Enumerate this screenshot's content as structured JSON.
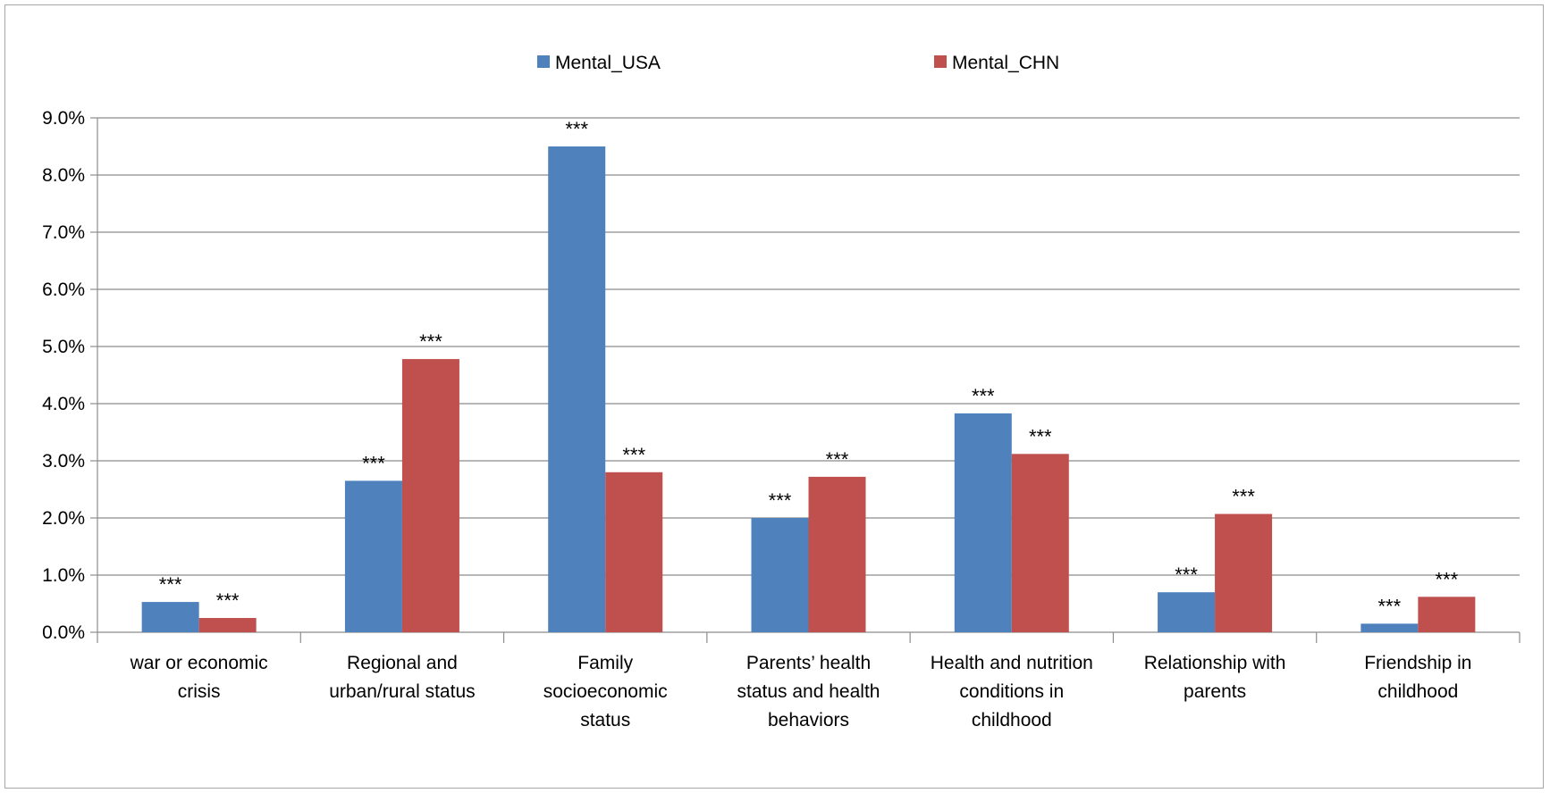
{
  "chart_data": {
    "type": "bar",
    "categories": [
      [
        "war or economic",
        "crisis"
      ],
      [
        "Regional and",
        "urban/rural status"
      ],
      [
        "Family",
        "socioeconomic",
        "status"
      ],
      [
        "Parents’ health",
        "status and health",
        "behaviors"
      ],
      [
        "Health and nutrition",
        "conditions in",
        "childhood"
      ],
      [
        "Relationship with",
        "parents"
      ],
      [
        "Friendship in",
        "childhood"
      ]
    ],
    "series": [
      {
        "name": "Mental_USA",
        "color": "#4f81bd",
        "values": [
          0.53,
          2.65,
          8.5,
          2.0,
          3.83,
          0.7,
          0.15
        ],
        "labels": [
          "***",
          "***",
          "***",
          "***",
          "***",
          "***",
          "***"
        ]
      },
      {
        "name": "Mental_CHN",
        "color": "#c0504d",
        "values": [
          0.25,
          4.78,
          2.8,
          2.72,
          3.12,
          2.07,
          0.62
        ],
        "labels": [
          "***",
          "***",
          "***",
          "***",
          "***",
          "***",
          "***"
        ]
      }
    ],
    "ylim": [
      0,
      9
    ],
    "yticks": [
      "0.0%",
      "1.0%",
      "2.0%",
      "3.0%",
      "4.0%",
      "5.0%",
      "6.0%",
      "7.0%",
      "8.0%",
      "9.0%"
    ],
    "grid": true,
    "legend_position": "top-center",
    "title": "",
    "xlabel": "",
    "ylabel": ""
  }
}
